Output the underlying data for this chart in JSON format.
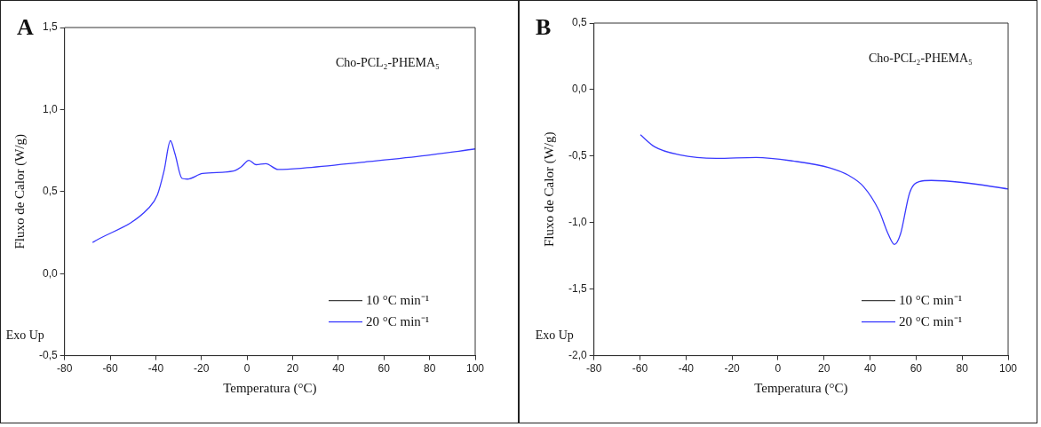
{
  "chart_data": [
    {
      "type": "line",
      "title": "A",
      "xlabel": "Temperatura (°C)",
      "ylabel": "Fluxo de Calor (W/g)",
      "annotations": [
        "Cho-PCL₂-PHEMA₅",
        "Exo Up"
      ],
      "xlim": [
        -80,
        100
      ],
      "xticks": [
        -80,
        -60,
        -40,
        -20,
        0,
        20,
        40,
        60,
        80,
        100
      ],
      "ylim": [
        -0.5,
        1.5
      ],
      "yticks": [
        {
          "value": -0.5,
          "label": "-0,5"
        },
        {
          "value": 0,
          "label": "0,0"
        },
        {
          "value": 0.5,
          "label": "0,5"
        },
        {
          "value": 1,
          "label": "1,0"
        },
        {
          "value": 1.5,
          "label": "1,5"
        }
      ],
      "legend": "bottom right",
      "grid": false,
      "marker": "none",
      "line_style": "solid",
      "series": [
        {
          "name": "10 °C min⁻¹",
          "color": "#404040"
        },
        {
          "name": "20 °C min⁻¹",
          "color": "#3a3aff",
          "x": [
            -67.7,
            -43.1,
            -39.3,
            -36.4,
            -33.6,
            -31.6,
            -28.5,
            -26.2,
            -19.5,
            -5.9,
            -2.6,
            0.8,
            3.9,
            8.2,
            13.6,
            24.5,
            51.5,
            78.5,
            100
          ],
          "values": [
            0.19,
            0.4,
            0.48,
            0.625,
            0.81,
            0.73,
            0.58,
            0.576,
            0.61,
            0.625,
            0.65,
            0.69,
            0.664,
            0.67,
            0.635,
            0.643,
            0.68,
            0.72,
            0.76
          ]
        }
      ]
    },
    {
      "type": "line",
      "title": "B",
      "xlabel": "Temperatura (°C)",
      "ylabel": "Fluxo de Calor (W/g)",
      "annotations": [
        "Cho-PCL₂-PHEMA₅",
        "Exo Up"
      ],
      "xlim": [
        -80,
        100
      ],
      "xticks": [
        -80,
        -60,
        -40,
        -20,
        0,
        20,
        40,
        60,
        80,
        100
      ],
      "ylim": [
        -2,
        0.5
      ],
      "yticks": [
        {
          "value": -2,
          "label": "-2,0"
        },
        {
          "value": -1.5,
          "label": "-1,5"
        },
        {
          "value": -1,
          "label": "-1,0"
        },
        {
          "value": -0.5,
          "label": "-0,5"
        },
        {
          "value": 0,
          "label": "0,0"
        },
        {
          "value": 0.5,
          "label": "0,5"
        }
      ],
      "legend": "bottom right",
      "grid": false,
      "marker": "none",
      "line_style": "solid",
      "series": [
        {
          "name": "10 °C min⁻¹",
          "color": "#404040"
        },
        {
          "name": "20 °C min⁻¹",
          "color": "#3a3aff",
          "x": [
            -59.8,
            -53.6,
            -42.9,
            -26.9,
            -9.5,
            6.5,
            22.5,
            30.5,
            37.2,
            43.9,
            47.9,
            50.6,
            53.2,
            57.2,
            61.3,
            66.6,
            79.9,
            100
          ],
          "values": [
            -0.34,
            -0.43,
            -0.49,
            -0.517,
            -0.51,
            -0.537,
            -0.588,
            -0.643,
            -0.73,
            -0.91,
            -1.087,
            -1.164,
            -1.087,
            -0.776,
            -0.692,
            -0.683,
            -0.698,
            -0.747
          ]
        }
      ]
    }
  ]
}
